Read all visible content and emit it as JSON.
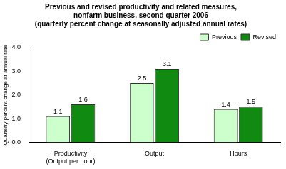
{
  "chart_data": {
    "type": "bar",
    "title": [
      "Previous and revised productivity and related measures,",
      "nonfarm business, second quarter 2006",
      "(quarterly percent change at seasonally adjusted annual rates)"
    ],
    "y_label": "Quarterly percent change at annual rate",
    "categories": [
      [
        "Productivity",
        "(Output per hour)"
      ],
      "Output",
      "Hours"
    ],
    "series": [
      {
        "name": "Previous",
        "color": "#ccffcc",
        "values": [
          1.1,
          2.5,
          1.4
        ]
      },
      {
        "name": "Revised",
        "color": "#118a11",
        "values": [
          1.6,
          3.1,
          1.5
        ]
      }
    ],
    "ylim": [
      0,
      4
    ],
    "yticks": [
      {
        "value": 0,
        "label": "0.0"
      },
      {
        "value": 1,
        "label": "1.0"
      },
      {
        "value": 2,
        "label": "2.0"
      },
      {
        "value": 3,
        "label": "3.0"
      },
      {
        "value": 4,
        "label": "4.0"
      }
    ],
    "grid": false,
    "legend": "top-right",
    "data_labels": true
  }
}
